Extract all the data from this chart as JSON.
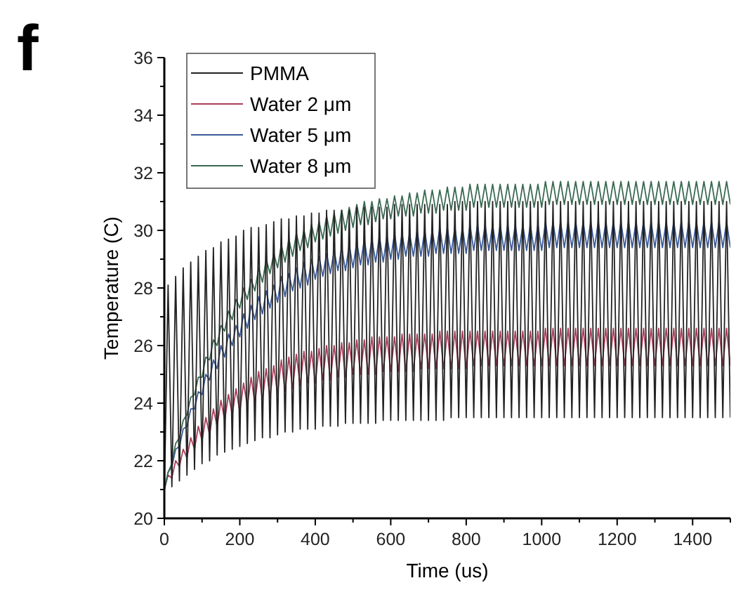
{
  "chart_data": {
    "type": "line",
    "xlabel": "Time (us)",
    "ylabel": "Temperature (C)",
    "annotations": [
      "f"
    ],
    "xlim": [
      0,
      1500
    ],
    "xticks": [
      0,
      200,
      400,
      600,
      800,
      1000,
      1200,
      1400
    ],
    "ylim": [
      20,
      36
    ],
    "yticks": [
      20,
      22,
      24,
      26,
      28,
      30,
      32,
      34,
      36
    ],
    "legend": "top left",
    "line_style": "solid",
    "marker": "none",
    "grid": false,
    "x": [
      0,
      10,
      20,
      30,
      40,
      50,
      60,
      70,
      80,
      90,
      100,
      110,
      120,
      130,
      140,
      150,
      160,
      170,
      180,
      190,
      200,
      210,
      220,
      230,
      240,
      250,
      260,
      270,
      280,
      290,
      300,
      310,
      320,
      330,
      340,
      350,
      360,
      370,
      380,
      390,
      400,
      410,
      420,
      430,
      440,
      450,
      460,
      470,
      480,
      490,
      500,
      510,
      520,
      530,
      540,
      550,
      560,
      570,
      580,
      590,
      600,
      610,
      620,
      630,
      640,
      650,
      660,
      670,
      680,
      690,
      700,
      710,
      720,
      730,
      740,
      750,
      760,
      770,
      780,
      790,
      800,
      810,
      820,
      830,
      840,
      850,
      860,
      870,
      880,
      890,
      900,
      910,
      920,
      930,
      940,
      950,
      960,
      970,
      980,
      990,
      1000,
      1010,
      1020,
      1030,
      1040,
      1050,
      1060,
      1070,
      1080,
      1090,
      1100,
      1110,
      1120,
      1130,
      1140,
      1150,
      1160,
      1170,
      1180,
      1190,
      1200,
      1210,
      1220,
      1230,
      1240,
      1250,
      1260,
      1270,
      1280,
      1290,
      1300,
      1310,
      1320,
      1330,
      1340,
      1350,
      1360,
      1370,
      1380,
      1390,
      1400,
      1410,
      1420,
      1430,
      1440,
      1450,
      1460,
      1470,
      1480,
      1490,
      1500
    ],
    "series": [
      {
        "name": "PMMA",
        "color": "#222222",
        "values": [
          20.8,
          28.1,
          21.1,
          28.4,
          21.3,
          28.7,
          21.5,
          28.9,
          21.7,
          29.1,
          21.9,
          29.3,
          22.0,
          29.4,
          22.2,
          29.6,
          22.3,
          29.7,
          22.4,
          29.8,
          22.5,
          30.0,
          22.6,
          30.1,
          22.7,
          30.1,
          22.8,
          30.2,
          22.8,
          30.3,
          22.9,
          30.4,
          23.0,
          30.4,
          23.0,
          30.5,
          23.1,
          30.5,
          23.1,
          30.6,
          23.1,
          30.6,
          23.2,
          30.7,
          23.2,
          30.7,
          23.2,
          30.7,
          23.3,
          30.7,
          23.3,
          30.8,
          23.3,
          30.8,
          23.3,
          30.8,
          23.3,
          30.8,
          23.4,
          30.8,
          23.4,
          30.9,
          23.4,
          30.9,
          23.4,
          30.9,
          23.4,
          30.9,
          23.4,
          30.9,
          23.4,
          30.9,
          23.4,
          30.9,
          23.4,
          30.9,
          23.5,
          31.0,
          23.5,
          31.0,
          23.5,
          31.0,
          23.5,
          31.0,
          23.5,
          31.0,
          23.5,
          31.0,
          23.5,
          31.0,
          23.5,
          31.0,
          23.5,
          31.0,
          23.5,
          31.0,
          23.5,
          31.0,
          23.5,
          31.0,
          23.5,
          31.0,
          23.5,
          31.0,
          23.5,
          31.0,
          23.5,
          31.0,
          23.5,
          31.0,
          23.5,
          31.0,
          23.5,
          31.0,
          23.5,
          31.0,
          23.5,
          31.0,
          23.5,
          31.0,
          23.5,
          31.0,
          23.5,
          31.0,
          23.5,
          31.0,
          23.5,
          31.0,
          23.5,
          31.0,
          23.5,
          31.0,
          23.5,
          31.0,
          23.5,
          31.0,
          23.5,
          31.0,
          23.5,
          31.0,
          23.5,
          31.0,
          23.5,
          31.0,
          23.5,
          31.0,
          23.5,
          31.0,
          23.5,
          31.0,
          23.5
        ]
      },
      {
        "name": "Water 2 μm",
        "color": "#a8405a",
        "values": [
          21.0,
          21.5,
          21.4,
          22.0,
          21.8,
          22.4,
          22.1,
          22.8,
          22.4,
          23.2,
          22.7,
          23.5,
          22.9,
          23.8,
          23.2,
          24.1,
          23.4,
          24.3,
          23.6,
          24.5,
          23.7,
          24.7,
          23.9,
          24.9,
          24.0,
          25.1,
          24.1,
          25.2,
          24.2,
          25.3,
          24.3,
          25.5,
          24.4,
          25.6,
          24.5,
          25.7,
          24.6,
          25.8,
          24.7,
          25.8,
          24.7,
          25.9,
          24.8,
          26.0,
          24.8,
          26.0,
          24.9,
          26.1,
          24.9,
          26.1,
          25.0,
          26.2,
          25.0,
          26.2,
          25.0,
          26.3,
          25.0,
          26.3,
          25.1,
          26.3,
          25.1,
          26.3,
          25.1,
          26.4,
          25.1,
          26.4,
          25.1,
          26.4,
          25.2,
          26.4,
          25.2,
          26.4,
          25.2,
          26.5,
          25.2,
          26.5,
          25.2,
          26.5,
          25.2,
          26.5,
          25.2,
          26.5,
          25.3,
          26.5,
          25.3,
          26.5,
          25.3,
          26.5,
          25.3,
          26.5,
          25.3,
          26.5,
          25.3,
          26.5,
          25.3,
          26.5,
          25.3,
          26.5,
          25.3,
          26.5,
          25.3,
          26.6,
          25.3,
          26.6,
          25.3,
          26.6,
          25.3,
          26.6,
          25.3,
          26.6,
          25.3,
          26.6,
          25.3,
          26.6,
          25.3,
          26.6,
          25.3,
          26.6,
          25.3,
          26.6,
          25.3,
          26.6,
          25.3,
          26.6,
          25.3,
          26.6,
          25.3,
          26.6,
          25.3,
          26.6,
          25.3,
          26.6,
          25.3,
          26.6,
          25.3,
          26.6,
          25.3,
          26.6,
          25.3,
          26.6,
          25.3,
          26.6,
          25.3,
          26.6,
          25.3,
          26.6,
          25.3,
          26.6,
          25.3,
          26.6,
          25.3
        ]
      },
      {
        "name": "Water 5 μm",
        "color": "#3a5a9a",
        "values": [
          21.0,
          21.6,
          21.8,
          22.4,
          22.5,
          23.1,
          23.2,
          23.8,
          23.8,
          24.4,
          24.3,
          25.0,
          24.8,
          25.5,
          25.2,
          26.0,
          25.6,
          26.4,
          26.0,
          26.7,
          26.3,
          27.1,
          26.6,
          27.4,
          26.9,
          27.7,
          27.1,
          27.9,
          27.3,
          28.1,
          27.5,
          28.4,
          27.7,
          28.5,
          27.9,
          28.7,
          28.0,
          28.9,
          28.1,
          29.0,
          28.3,
          29.1,
          28.4,
          29.2,
          28.5,
          29.3,
          28.6,
          29.4,
          28.6,
          29.5,
          28.7,
          29.6,
          28.8,
          29.7,
          28.8,
          29.7,
          28.9,
          29.8,
          28.9,
          29.8,
          29.0,
          29.9,
          29.0,
          29.9,
          29.1,
          29.9,
          29.1,
          30.0,
          29.1,
          30.0,
          29.1,
          30.0,
          29.2,
          30.1,
          29.2,
          30.1,
          29.2,
          30.1,
          29.2,
          30.1,
          29.2,
          30.2,
          29.3,
          30.2,
          29.3,
          30.2,
          29.3,
          30.2,
          29.3,
          30.2,
          29.3,
          30.2,
          29.3,
          30.2,
          29.3,
          30.2,
          29.3,
          30.2,
          29.3,
          30.2,
          29.3,
          30.3,
          29.4,
          30.3,
          29.4,
          30.3,
          29.4,
          30.3,
          29.4,
          30.3,
          29.4,
          30.3,
          29.4,
          30.3,
          29.4,
          30.3,
          29.4,
          30.3,
          29.4,
          30.3,
          29.4,
          30.3,
          29.4,
          30.3,
          29.4,
          30.3,
          29.4,
          30.3,
          29.4,
          30.3,
          29.4,
          30.3,
          29.4,
          30.3,
          29.4,
          30.3,
          29.4,
          30.3,
          29.4,
          30.3,
          29.4,
          30.3,
          29.4,
          30.3,
          29.4,
          30.3,
          29.4,
          30.3,
          29.4,
          30.3,
          29.4
        ]
      },
      {
        "name": "Water 8 μm",
        "color": "#3a6a50",
        "values": [
          21.0,
          21.6,
          21.9,
          22.6,
          22.8,
          23.4,
          23.6,
          24.2,
          24.3,
          24.9,
          24.9,
          25.6,
          25.5,
          26.2,
          26.0,
          26.7,
          26.5,
          27.2,
          26.9,
          27.6,
          27.3,
          28.0,
          27.6,
          28.3,
          27.9,
          28.7,
          28.2,
          29.0,
          28.5,
          29.2,
          28.7,
          29.5,
          28.9,
          29.7,
          29.1,
          29.9,
          29.3,
          30.0,
          29.4,
          30.2,
          29.6,
          30.3,
          29.7,
          30.5,
          29.8,
          30.6,
          29.9,
          30.7,
          30.0,
          30.8,
          30.1,
          30.9,
          30.2,
          31.0,
          30.2,
          31.0,
          30.3,
          31.1,
          30.4,
          31.1,
          30.4,
          31.2,
          30.5,
          31.2,
          30.5,
          31.3,
          30.5,
          31.3,
          30.6,
          31.4,
          30.6,
          31.4,
          30.6,
          31.4,
          30.7,
          31.5,
          30.7,
          31.5,
          30.7,
          31.5,
          30.7,
          31.6,
          30.8,
          31.6,
          30.8,
          31.6,
          30.8,
          31.6,
          30.8,
          31.6,
          30.8,
          31.6,
          30.8,
          31.6,
          30.8,
          31.6,
          30.8,
          31.6,
          30.8,
          31.6,
          30.8,
          31.7,
          30.9,
          31.7,
          30.9,
          31.7,
          30.9,
          31.7,
          30.9,
          31.7,
          30.9,
          31.7,
          30.9,
          31.7,
          30.9,
          31.7,
          30.9,
          31.7,
          30.9,
          31.7,
          30.9,
          31.7,
          30.9,
          31.7,
          30.9,
          31.7,
          30.9,
          31.7,
          30.9,
          31.7,
          30.9,
          31.7,
          30.9,
          31.7,
          30.9,
          31.7,
          30.9,
          31.7,
          30.9,
          31.7,
          30.9,
          31.7,
          30.9,
          31.7,
          30.9,
          31.7,
          30.9,
          31.7,
          30.9,
          31.7,
          30.9
        ]
      }
    ]
  }
}
